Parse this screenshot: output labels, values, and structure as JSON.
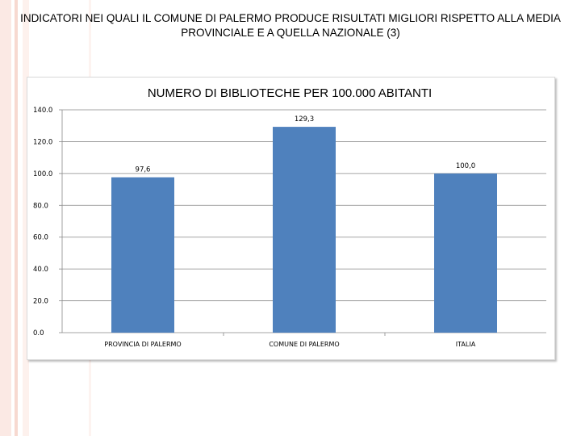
{
  "slide": {
    "title": "INDICATORI NEI QUALI IL COMUNE DI PALERMO PRODUCE RISULTATI MIGLIORI RISPETTO ALLA MEDIA PROVINCIALE E A QUELLA NAZIONALE (3)"
  },
  "colors": {
    "bar": "#4f81bd",
    "grid": "#888888",
    "axis": "#888888"
  },
  "chart_data": {
    "type": "bar",
    "title": "NUMERO DI BIBLIOTECHE PER 100.000 ABITANTI",
    "categories": [
      "PROVINCIA DI PALERMO",
      "COMUNE DI PALERMO",
      "ITALIA"
    ],
    "values": [
      97.6,
      129.3,
      100.0
    ],
    "value_labels": [
      "97,6",
      "129,3",
      "100,0"
    ],
    "ylim": [
      0,
      140
    ],
    "y_ticks": [
      0,
      20,
      40,
      60,
      80,
      100,
      120,
      140
    ],
    "y_tick_labels": [
      "0.0",
      "20.0",
      "40.0",
      "60.0",
      "80.0",
      "100.0",
      "120.0",
      "140.0"
    ],
    "grid": true,
    "legend": "none",
    "xlabel": "",
    "ylabel": ""
  }
}
